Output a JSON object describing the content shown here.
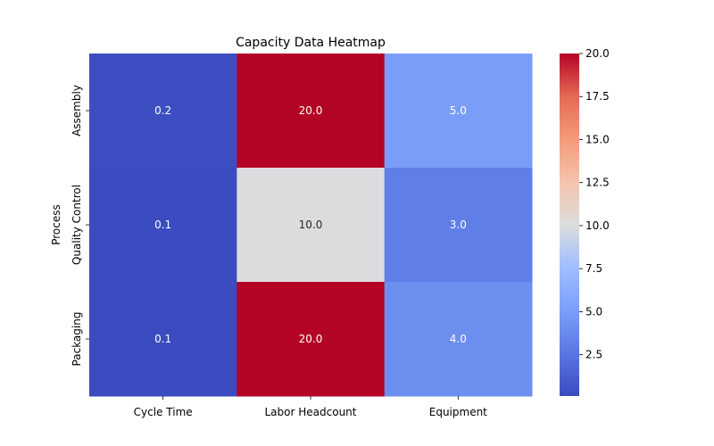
{
  "chart_data": {
    "type": "heatmap",
    "title": "Capacity Data Heatmap",
    "xlabel": "",
    "ylabel": "Process",
    "columns": [
      "Cycle Time",
      "Labor Headcount",
      "Equipment"
    ],
    "rows": [
      "Assembly",
      "Quality Control",
      "Packaging"
    ],
    "values": [
      [
        0.2,
        20.0,
        5.0
      ],
      [
        0.1,
        10.0,
        3.0
      ],
      [
        0.1,
        20.0,
        4.0
      ]
    ],
    "value_labels": [
      [
        "0.2",
        "20.0",
        "5.0"
      ],
      [
        "0.1",
        "10.0",
        "3.0"
      ],
      [
        "0.1",
        "20.0",
        "4.0"
      ]
    ],
    "colormap": "coolwarm",
    "vmin": 0.1,
    "vmax": 20.0,
    "colorbar_ticks": [
      "2.5",
      "5.0",
      "7.5",
      "10.0",
      "12.5",
      "15.0",
      "17.5",
      "20.0"
    ],
    "colors": {
      "low": "#3b4cc0",
      "mid": "#dddddd",
      "high": "#b40426"
    }
  }
}
